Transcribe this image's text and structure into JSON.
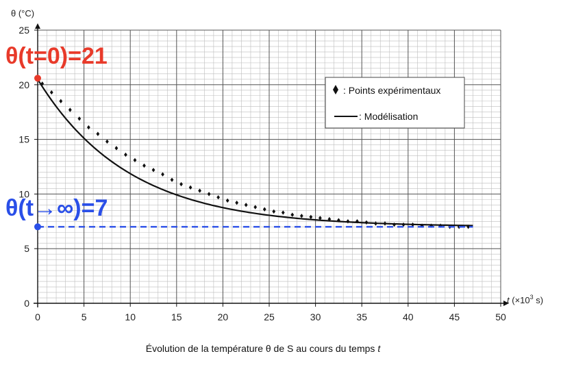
{
  "chart_data": {
    "type": "line",
    "caption": "Évolution de la température θ de S au cours du temps",
    "caption_var": "t",
    "ylabel": "θ (°C)",
    "xlabel_var": "t",
    "xlabel_unit_pre": " (×10",
    "xlabel_exp": "3",
    "xlabel_unit_post": " s)",
    "xlim": [
      0,
      50
    ],
    "ylim": [
      0,
      25
    ],
    "x_ticks": [
      0,
      5,
      10,
      15,
      20,
      25,
      30,
      35,
      40,
      45,
      50
    ],
    "y_ticks": [
      0,
      5,
      10,
      15,
      20,
      25
    ],
    "grid": true,
    "legend_position": "top-right",
    "series": [
      {
        "name": ": Points expérimentaux",
        "marker": "diamond",
        "color": "#111111",
        "x": [
          0.5,
          1.5,
          2.5,
          3.5,
          4.5,
          5.5,
          6.5,
          7.5,
          8.5,
          9.5,
          10.5,
          11.5,
          12.5,
          13.5,
          14.5,
          15.5,
          16.5,
          17.5,
          18.5,
          19.5,
          20.5,
          21.5,
          22.5,
          23.5,
          24.5,
          25.5,
          26.5,
          27.5,
          28.5,
          29.5,
          30.5,
          31.5,
          32.5,
          33.5,
          34.5,
          35.5,
          36.5,
          37.5,
          38.5,
          39.5,
          40.5,
          41.5,
          42.5,
          43.5,
          44.5,
          45.5,
          46.5
        ],
        "y": [
          20.1,
          19.3,
          18.5,
          17.7,
          16.9,
          16.1,
          15.5,
          14.8,
          14.2,
          13.6,
          13.1,
          12.6,
          12.2,
          11.8,
          11.3,
          10.9,
          10.6,
          10.3,
          10.0,
          9.7,
          9.4,
          9.2,
          9.0,
          8.8,
          8.6,
          8.4,
          8.3,
          8.1,
          8.0,
          7.9,
          7.8,
          7.7,
          7.6,
          7.5,
          7.5,
          7.4,
          7.3,
          7.3,
          7.2,
          7.2,
          7.2,
          7.1,
          7.1,
          7.1,
          7.0,
          7.0,
          7.0
        ]
      },
      {
        "name": ": Modélisation",
        "style": "line",
        "color": "#111111",
        "theta_inf": 7,
        "theta_0": 20.5,
        "tau": 9.8,
        "x_range": [
          0,
          47
        ]
      }
    ],
    "annotations": [
      {
        "text": "θ(t=0)=21",
        "color": "#e83a2a",
        "point": [
          0,
          20.6
        ]
      },
      {
        "text": "θ(t→∞)=7",
        "color": "#2a4fe8",
        "point": [
          0,
          7
        ],
        "hline_y": 7,
        "hline_to": 47,
        "dashed": true
      }
    ]
  }
}
